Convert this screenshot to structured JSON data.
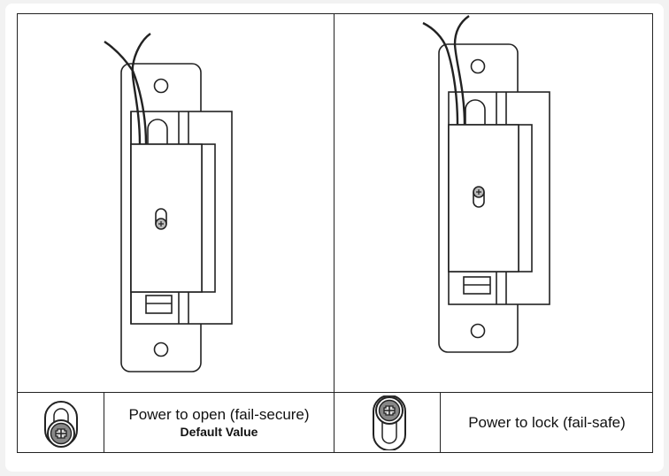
{
  "legend": {
    "fail_secure": {
      "label": "Power to open (fail-secure)",
      "note": "Default Value"
    },
    "fail_safe": {
      "label": "Power to lock (fail-safe)"
    }
  },
  "icons": {
    "fail_secure_jumper": "jumper-screw-bottom-icon",
    "fail_safe_jumper": "jumper-screw-top-icon"
  },
  "colors": {
    "line": "#222222",
    "screw_fill": "#888888"
  }
}
